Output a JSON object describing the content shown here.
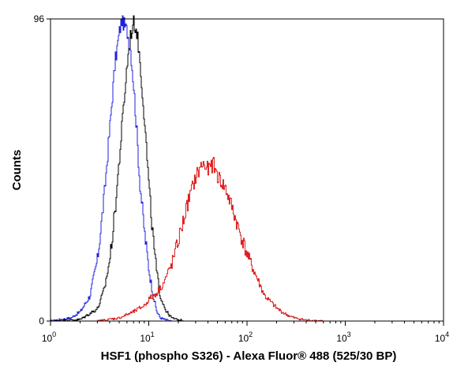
{
  "chart_data": {
    "type": "histogram",
    "x_scale": "log",
    "xlim": [
      1,
      10000
    ],
    "ylim": [
      0,
      96
    ],
    "xlabel": "HSF1 (phospho S326) - Alexa Fluor® 488 (525/30 BP)",
    "ylabel": "Counts",
    "x_ticks": [
      {
        "value": 1,
        "base": "10",
        "exp": "0"
      },
      {
        "value": 10,
        "base": "10",
        "exp": "1"
      },
      {
        "value": 100,
        "base": "10",
        "exp": "2"
      },
      {
        "value": 1000,
        "base": "10",
        "exp": "3"
      },
      {
        "value": 10000,
        "base": "10",
        "exp": "4"
      }
    ],
    "y_ticks": [
      {
        "value": 0,
        "label": "0"
      },
      {
        "value": 96,
        "label": "96"
      }
    ],
    "grid": false,
    "series": [
      {
        "color": "#2020dd",
        "x": [
          1.0,
          1.6,
          2.0,
          2.5,
          3.0,
          3.5,
          4.0,
          4.5,
          5.0,
          5.3,
          5.6,
          6.0,
          6.5,
          7.0,
          7.5,
          8.0,
          9.0,
          10.0,
          11.0,
          12.0,
          13.0,
          15.0,
          17.0
        ],
        "y": [
          0,
          1,
          3,
          8,
          20,
          40,
          62,
          82,
          92,
          96,
          94,
          92,
          86,
          74,
          60,
          45,
          28,
          16,
          8,
          3,
          1,
          0.3,
          0
        ]
      },
      {
        "color": "#000000",
        "x": [
          1.0,
          2.0,
          3.0,
          3.5,
          4.0,
          4.5,
          5.0,
          5.5,
          6.0,
          6.5,
          7.0,
          7.5,
          8.0,
          9.0,
          10.0,
          11.0,
          12.0,
          13.0,
          15.0,
          17.0,
          20.0,
          25.0
        ],
        "y": [
          0,
          0.5,
          4,
          10,
          20,
          35,
          52,
          68,
          82,
          91,
          95,
          92,
          84,
          64,
          42,
          26,
          15,
          8,
          3,
          1,
          0.3,
          0
        ]
      },
      {
        "color": "#dd2020",
        "x": [
          3.0,
          5.0,
          7.0,
          9.0,
          10.0,
          11.0,
          12.0,
          14.0,
          17.0,
          20.0,
          25.0,
          30.0,
          35.0,
          40.0,
          45.0,
          50.0,
          55.0,
          60.0,
          70.0,
          80.0,
          100.0,
          120.0,
          150.0,
          200.0,
          250.0,
          300.0,
          400.0,
          600.0
        ],
        "y": [
          0,
          1,
          3,
          5,
          7,
          8,
          9,
          12,
          18,
          26,
          38,
          46,
          50,
          48,
          50,
          46,
          44,
          42,
          36,
          30,
          21,
          15,
          8,
          4,
          2,
          1,
          0.3,
          0
        ]
      }
    ]
  }
}
